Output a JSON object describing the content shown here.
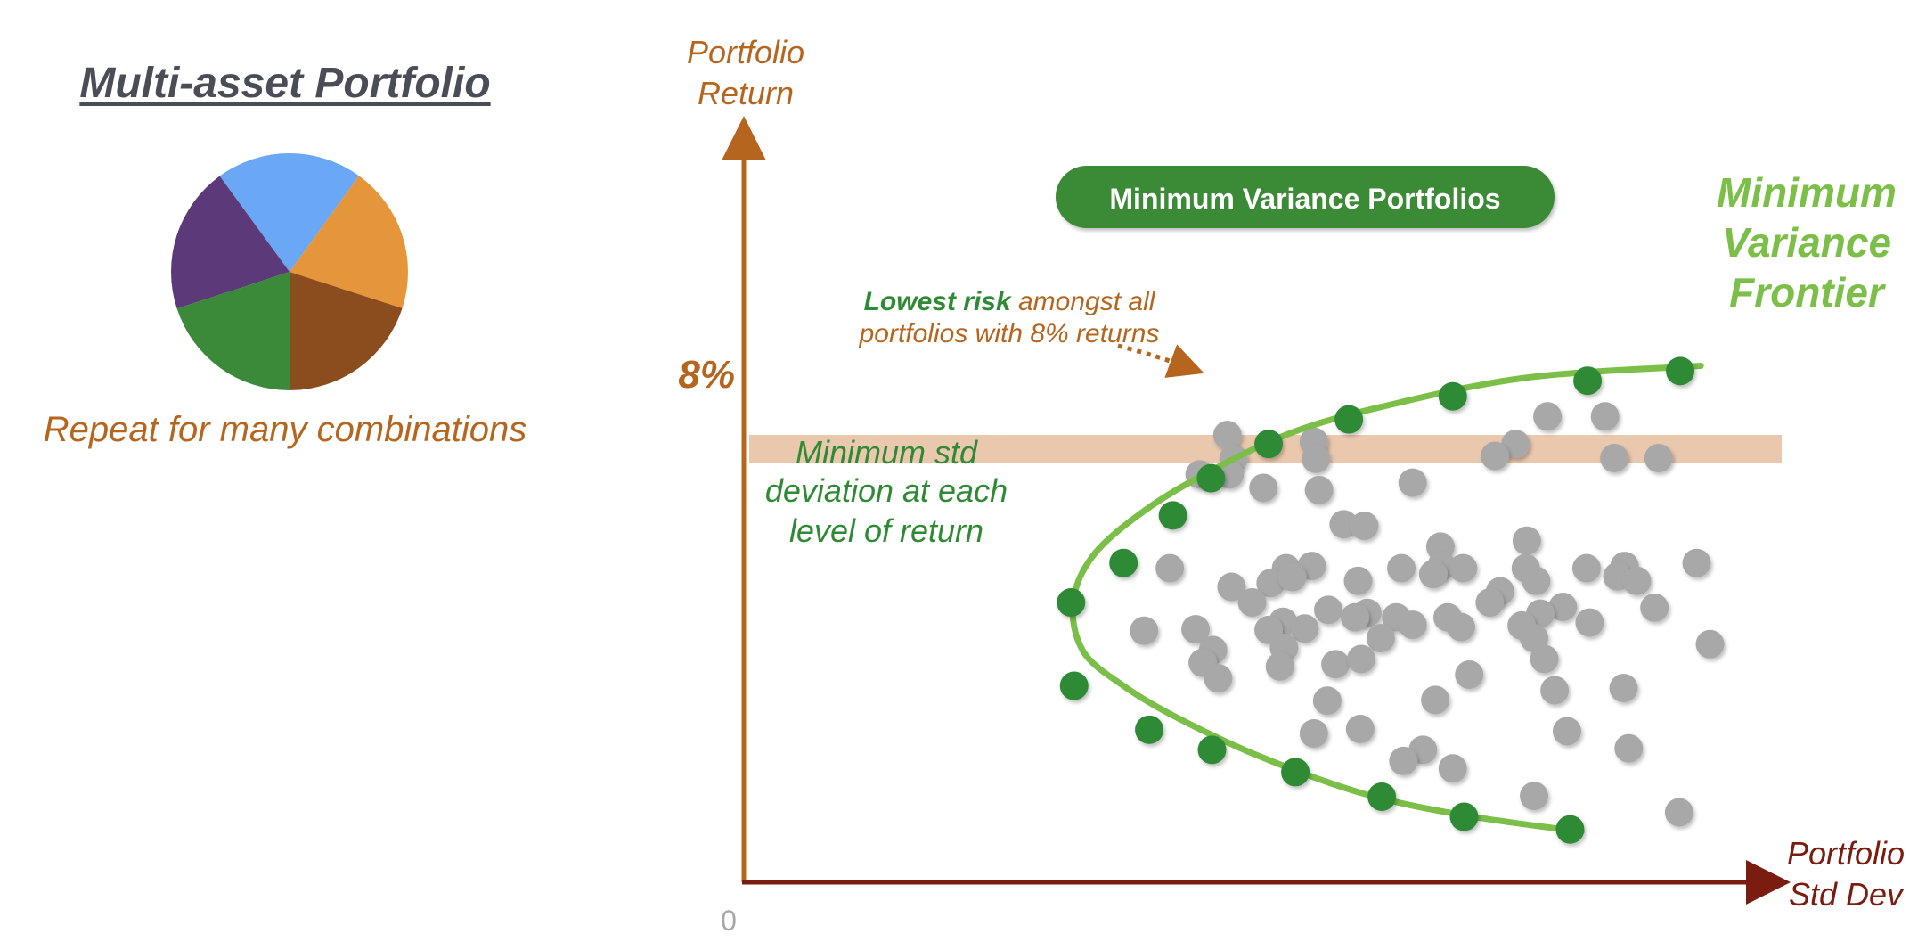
{
  "page": {
    "title": "Multi-asset Portfolio",
    "pie_caption": "Repeat for many combinations"
  },
  "colors": {
    "axis_y": "#b5651d",
    "axis_x": "#7a1d10",
    "band": "#e8c2a4",
    "frontier": "#7cbf48",
    "frontier_point": "#2f8a35",
    "portfolio_point": "#a8a8a8",
    "badge": "#3a8a35"
  },
  "chart_data": [
    {
      "type": "pie",
      "slices": [
        {
          "value": 20,
          "color": "#6aa7f5"
        },
        {
          "value": 20,
          "color": "#e5963a"
        },
        {
          "value": 20,
          "color": "#8b4c1e"
        },
        {
          "value": 20,
          "color": "#3b8a3a"
        },
        {
          "value": 20,
          "color": "#5c3a7a"
        }
      ]
    },
    {
      "type": "scatter",
      "ylabel": [
        "Portfolio",
        "Return"
      ],
      "xlabel": [
        "Portfolio",
        "Std Dev"
      ],
      "origin_label": "0",
      "band_label": "8%",
      "badge": "Minimum Variance Portfolios",
      "frontier_label": [
        "Minimum",
        "Variance",
        "Frontier"
      ],
      "annotation": {
        "bold": "Lowest risk",
        "rest": " amongst all",
        "line2": "portfolios with 8% returns"
      },
      "note": [
        "Minimum std",
        "deviation at each",
        "level of return"
      ],
      "frontier_points": [
        [
          0.318,
          0.376
        ],
        [
          0.369,
          0.429
        ],
        [
          0.417,
          0.493
        ],
        [
          0.454,
          0.543
        ],
        [
          0.51,
          0.589
        ],
        [
          0.588,
          0.622
        ],
        [
          0.689,
          0.653
        ],
        [
          0.82,
          0.674
        ],
        [
          0.91,
          0.687
        ],
        [
          0.321,
          0.264
        ],
        [
          0.394,
          0.205
        ],
        [
          0.455,
          0.178
        ],
        [
          0.536,
          0.148
        ],
        [
          0.62,
          0.115
        ],
        [
          0.7,
          0.088
        ],
        [
          0.803,
          0.071
        ]
      ],
      "frontier_curve": [
        [
          0.814,
          0.068
        ],
        [
          0.7,
          0.09
        ],
        [
          0.6,
          0.12
        ],
        [
          0.5,
          0.17
        ],
        [
          0.42,
          0.222
        ],
        [
          0.37,
          0.263
        ],
        [
          0.33,
          0.31
        ],
        [
          0.32,
          0.376
        ],
        [
          0.34,
          0.44
        ],
        [
          0.39,
          0.5
        ],
        [
          0.45,
          0.55
        ],
        [
          0.53,
          0.603
        ],
        [
          0.62,
          0.639
        ],
        [
          0.76,
          0.678
        ],
        [
          0.93,
          0.694
        ]
      ],
      "portfolio_points": [
        [
          0.47,
          0.601
        ],
        [
          0.554,
          0.592
        ],
        [
          0.75,
          0.589
        ],
        [
          0.781,
          0.626
        ],
        [
          0.837,
          0.626
        ],
        [
          0.556,
          0.569
        ],
        [
          0.476,
          0.569
        ],
        [
          0.73,
          0.573
        ],
        [
          0.889,
          0.57
        ],
        [
          0.505,
          0.53
        ],
        [
          0.846,
          0.57
        ],
        [
          0.65,
          0.537
        ],
        [
          0.559,
          0.527
        ],
        [
          0.443,
          0.548
        ],
        [
          0.472,
          0.548
        ],
        [
          0.583,
          0.481
        ],
        [
          0.603,
          0.479
        ],
        [
          0.677,
          0.451
        ],
        [
          0.761,
          0.459
        ],
        [
          0.414,
          0.422
        ],
        [
          0.527,
          0.422
        ],
        [
          0.552,
          0.425
        ],
        [
          0.639,
          0.422
        ],
        [
          0.678,
          0.425
        ],
        [
          0.699,
          0.422
        ],
        [
          0.76,
          0.422
        ],
        [
          0.819,
          0.422
        ],
        [
          0.856,
          0.425
        ],
        [
          0.926,
          0.429
        ],
        [
          0.474,
          0.397
        ],
        [
          0.512,
          0.402
        ],
        [
          0.533,
          0.41
        ],
        [
          0.597,
          0.405
        ],
        [
          0.67,
          0.414
        ],
        [
          0.735,
          0.391
        ],
        [
          0.77,
          0.405
        ],
        [
          0.849,
          0.411
        ],
        [
          0.868,
          0.405
        ],
        [
          0.494,
          0.376
        ],
        [
          0.568,
          0.366
        ],
        [
          0.606,
          0.362
        ],
        [
          0.725,
          0.376
        ],
        [
          0.796,
          0.37
        ],
        [
          0.524,
          0.35
        ],
        [
          0.594,
          0.356
        ],
        [
          0.634,
          0.356
        ],
        [
          0.684,
          0.356
        ],
        [
          0.774,
          0.361
        ],
        [
          0.822,
          0.349
        ],
        [
          0.885,
          0.369
        ],
        [
          0.389,
          0.338
        ],
        [
          0.439,
          0.34
        ],
        [
          0.51,
          0.339
        ],
        [
          0.545,
          0.341
        ],
        [
          0.65,
          0.346
        ],
        [
          0.697,
          0.343
        ],
        [
          0.756,
          0.345
        ],
        [
          0.456,
          0.312
        ],
        [
          0.525,
          0.315
        ],
        [
          0.619,
          0.328
        ],
        [
          0.768,
          0.328
        ],
        [
          0.939,
          0.32
        ],
        [
          0.446,
          0.295
        ],
        [
          0.521,
          0.29
        ],
        [
          0.575,
          0.293
        ],
        [
          0.6,
          0.3
        ],
        [
          0.705,
          0.279
        ],
        [
          0.778,
          0.3
        ],
        [
          0.461,
          0.274
        ],
        [
          0.567,
          0.244
        ],
        [
          0.672,
          0.245
        ],
        [
          0.855,
          0.261
        ],
        [
          0.554,
          0.2
        ],
        [
          0.599,
          0.206
        ],
        [
          0.788,
          0.258
        ],
        [
          0.66,
          0.178
        ],
        [
          0.8,
          0.203
        ],
        [
          0.86,
          0.18
        ],
        [
          0.689,
          0.153
        ],
        [
          0.768,
          0.116
        ],
        [
          0.909,
          0.094
        ],
        [
          0.641,
          0.163
        ]
      ],
      "band_y": 0.582
    }
  ]
}
